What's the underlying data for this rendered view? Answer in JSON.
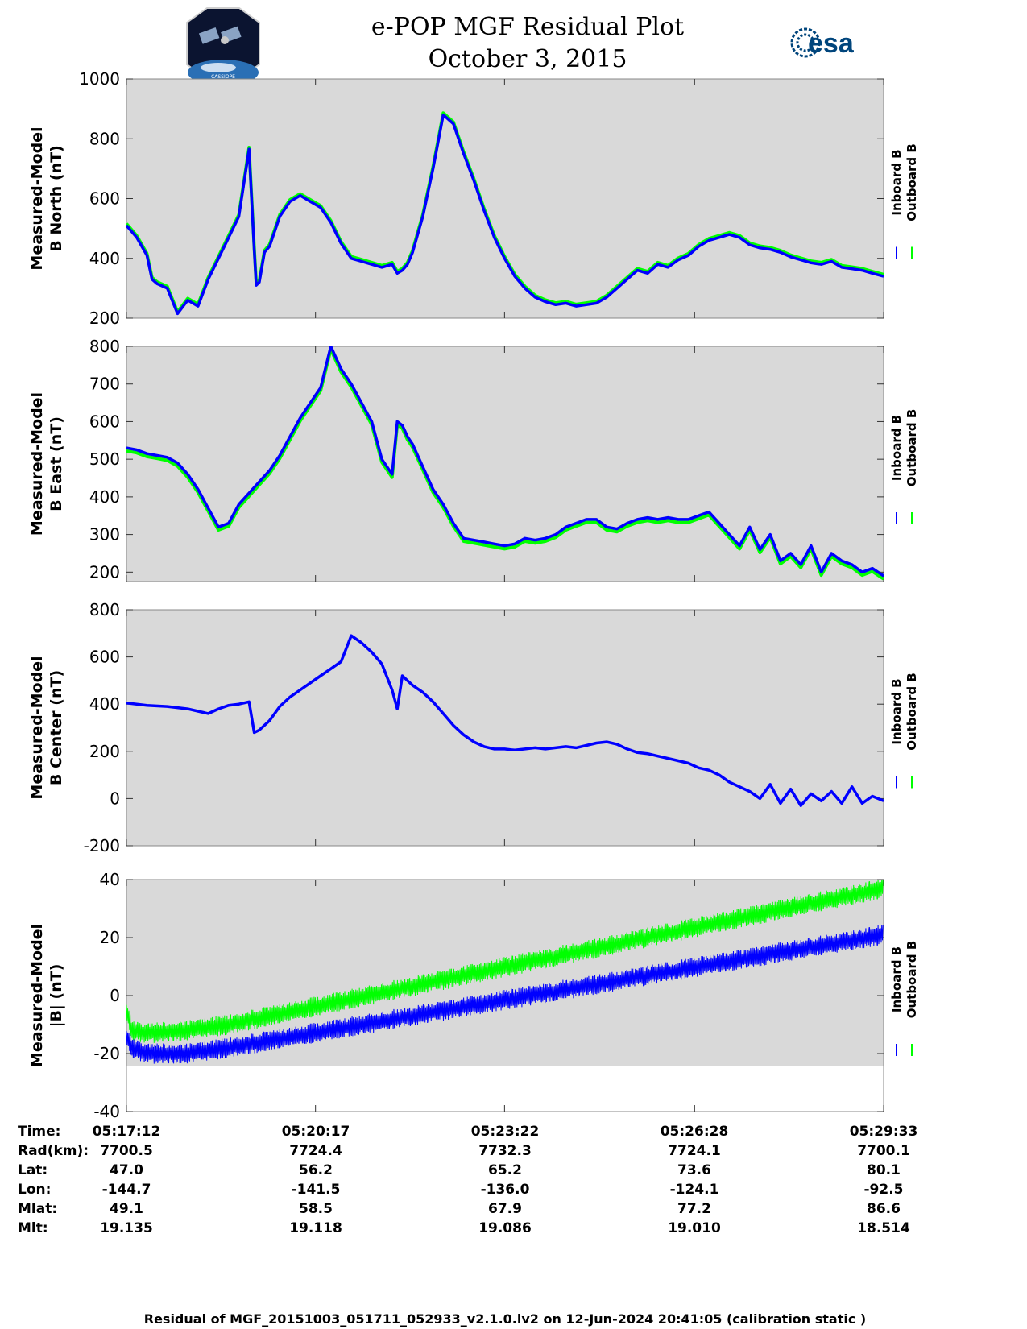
{
  "header": {
    "title_line1": "e-POP MGF Residual Plot",
    "title_line2": "October 3, 2015",
    "esa_logo_text": "esa",
    "mission_logo_text": "CASSIOPE"
  },
  "colors": {
    "inboard": "#0000ff",
    "outboard": "#00ff00",
    "plot_bg": "#d9d9d9"
  },
  "legend": {
    "inboard": "Inboard B",
    "outboard": "Outboard B"
  },
  "chart_data": [
    {
      "type": "line",
      "ylabel": [
        "Measured-Model",
        "B North (nT)"
      ],
      "ylim": [
        200,
        1000
      ],
      "yticks": [
        200,
        400,
        600,
        800,
        1000
      ],
      "x": [
        0,
        20,
        40,
        60,
        70,
        90,
        110,
        120,
        140,
        160,
        180,
        200,
        210,
        220,
        240,
        260,
        280,
        300,
        320,
        340,
        360,
        380,
        400,
        420,
        440,
        460,
        480,
        500,
        520,
        540,
        560,
        580,
        600,
        620,
        640,
        660,
        680,
        700,
        720,
        740,
        760,
        741
      ],
      "series": [
        {
          "name": "Inboard B",
          "x": [
            0,
            10,
            20,
            25,
            30,
            40,
            50,
            60,
            70,
            80,
            90,
            100,
            110,
            120,
            125,
            127,
            130,
            135,
            140,
            150,
            160,
            170,
            180,
            190,
            200,
            210,
            220,
            230,
            240,
            250,
            260,
            265,
            270,
            275,
            280,
            285,
            290,
            300,
            310,
            320,
            330,
            340,
            350,
            360,
            370,
            380,
            390,
            400,
            410,
            420,
            430,
            440,
            450,
            460,
            470,
            480,
            490,
            500,
            510,
            520,
            530,
            540,
            550,
            560,
            570,
            580,
            590,
            600,
            610,
            620,
            630,
            640,
            650,
            660,
            670,
            680,
            690,
            700,
            710,
            720,
            730,
            741
          ],
          "values": [
            510,
            470,
            410,
            330,
            315,
            300,
            215,
            260,
            240,
            330,
            400,
            470,
            540,
            765,
            430,
            310,
            320,
            420,
            440,
            540,
            590,
            610,
            590,
            570,
            520,
            450,
            400,
            390,
            380,
            370,
            380,
            350,
            360,
            380,
            420,
            480,
            540,
            700,
            880,
            850,
            750,
            660,
            560,
            470,
            400,
            340,
            300,
            270,
            255,
            245,
            250,
            240,
            245,
            250,
            270,
            300,
            330,
            360,
            350,
            380,
            370,
            395,
            410,
            440,
            460,
            470,
            480,
            470,
            445,
            435,
            430,
            420,
            405,
            395,
            385,
            380,
            390,
            370,
            365,
            360,
            350,
            340
          ]
        },
        {
          "name": "Outboard B",
          "x": [
            0,
            741
          ],
          "values": [
            515,
            345
          ]
        }
      ]
    },
    {
      "type": "line",
      "ylabel": [
        "Measured-Model",
        "B East (nT)"
      ],
      "ylim": [
        175,
        800
      ],
      "yticks": [
        200,
        300,
        400,
        500,
        600,
        700,
        800
      ],
      "series": [
        {
          "name": "Inboard B",
          "x": [
            0,
            10,
            20,
            30,
            40,
            50,
            60,
            70,
            80,
            90,
            100,
            110,
            120,
            130,
            140,
            150,
            160,
            170,
            180,
            190,
            200,
            210,
            220,
            230,
            240,
            250,
            260,
            265,
            270,
            275,
            280,
            290,
            300,
            310,
            320,
            330,
            340,
            350,
            360,
            370,
            380,
            390,
            400,
            410,
            420,
            430,
            440,
            450,
            460,
            470,
            480,
            490,
            500,
            510,
            520,
            530,
            540,
            550,
            560,
            570,
            580,
            590,
            600,
            610,
            620,
            630,
            640,
            650,
            660,
            670,
            680,
            690,
            700,
            710,
            720,
            730,
            741
          ],
          "values": [
            530,
            525,
            515,
            510,
            505,
            490,
            460,
            420,
            370,
            320,
            330,
            380,
            410,
            440,
            470,
            510,
            560,
            610,
            650,
            690,
            800,
            740,
            700,
            650,
            600,
            500,
            460,
            600,
            590,
            560,
            540,
            480,
            420,
            380,
            330,
            290,
            285,
            280,
            275,
            270,
            275,
            290,
            285,
            290,
            300,
            320,
            330,
            340,
            340,
            320,
            315,
            330,
            340,
            345,
            340,
            345,
            340,
            340,
            350,
            360,
            330,
            300,
            270,
            320,
            260,
            300,
            230,
            250,
            220,
            270,
            200,
            250,
            230,
            220,
            200,
            210,
            190
          ]
        },
        {
          "name": "Outboard B",
          "x": [
            0,
            741
          ],
          "values": [
            520,
            180
          ]
        }
      ]
    },
    {
      "type": "line",
      "ylabel": [
        "Measured-Model",
        "B Center (nT)"
      ],
      "ylim": [
        -200,
        800
      ],
      "yticks": [
        -200,
        0,
        200,
        400,
        600,
        800
      ],
      "series": [
        {
          "name": "Inboard B",
          "x": [
            0,
            20,
            40,
            60,
            70,
            80,
            90,
            100,
            110,
            120,
            125,
            130,
            140,
            150,
            160,
            170,
            180,
            190,
            200,
            210,
            220,
            230,
            240,
            250,
            260,
            265,
            270,
            280,
            290,
            300,
            310,
            320,
            330,
            340,
            350,
            360,
            370,
            380,
            390,
            400,
            410,
            420,
            430,
            440,
            450,
            460,
            470,
            480,
            490,
            500,
            510,
            520,
            530,
            540,
            550,
            560,
            570,
            580,
            590,
            600,
            610,
            620,
            630,
            640,
            650,
            660,
            670,
            680,
            690,
            700,
            710,
            720,
            730,
            741
          ],
          "values": [
            405,
            395,
            390,
            380,
            370,
            360,
            380,
            395,
            400,
            410,
            280,
            290,
            330,
            390,
            430,
            460,
            490,
            520,
            550,
            580,
            690,
            660,
            620,
            570,
            460,
            380,
            520,
            480,
            450,
            410,
            360,
            310,
            270,
            240,
            220,
            210,
            210,
            205,
            210,
            215,
            210,
            215,
            220,
            215,
            225,
            235,
            240,
            230,
            210,
            195,
            190,
            180,
            170,
            160,
            150,
            130,
            120,
            100,
            70,
            50,
            30,
            0,
            60,
            -20,
            40,
            -30,
            20,
            -10,
            30,
            -20,
            50,
            -20,
            10,
            -10
          ]
        }
      ]
    },
    {
      "type": "line",
      "ylabel": [
        "Measured-Model",
        "|B| (nT)"
      ],
      "ylim": [
        -40,
        40
      ],
      "yticks": [
        -40,
        -20,
        0,
        20,
        40
      ],
      "noise_band_nt": 7,
      "series": [
        {
          "name": "Outboard B",
          "x": [
            0,
            5,
            20,
            60,
            100,
            741
          ],
          "values": [
            -5,
            -12,
            -13,
            -12,
            -10,
            37
          ]
        },
        {
          "name": "Inboard B",
          "x": [
            0,
            5,
            20,
            60,
            100,
            741
          ],
          "values": [
            -14,
            -18,
            -20,
            -20,
            -18,
            21
          ]
        }
      ]
    }
  ],
  "x_axis": {
    "domain": [
      0,
      741
    ],
    "tick_values": [
      0,
      185,
      370,
      556,
      741
    ],
    "tick_labels": [
      "05:17:12",
      "05:20:17",
      "05:23:22",
      "05:26:28",
      "05:29:33"
    ]
  },
  "table": {
    "rows": [
      {
        "label": "Time:",
        "values": [
          "05:17:12",
          "05:20:17",
          "05:23:22",
          "05:26:28",
          "05:29:33"
        ]
      },
      {
        "label": "Rad(km):",
        "values": [
          "7700.5",
          "7724.4",
          "7732.3",
          "7724.1",
          "7700.1"
        ]
      },
      {
        "label": "Lat:",
        "values": [
          "47.0",
          "56.2",
          "65.2",
          "73.6",
          "80.1"
        ]
      },
      {
        "label": "Lon:",
        "values": [
          "-144.7",
          "-141.5",
          "-136.0",
          "-124.1",
          "-92.5"
        ]
      },
      {
        "label": "Mlat:",
        "values": [
          "49.1",
          "58.5",
          "67.9",
          "77.2",
          "86.6"
        ]
      },
      {
        "label": "Mlt:",
        "values": [
          "19.135",
          "19.118",
          "19.086",
          "19.010",
          "18.514"
        ]
      }
    ]
  },
  "footer": "Residual of MGF_20151003_051711_052933_v2.1.0.lv2 on 12-Jun-2024 20:41:05 (calibration static )"
}
